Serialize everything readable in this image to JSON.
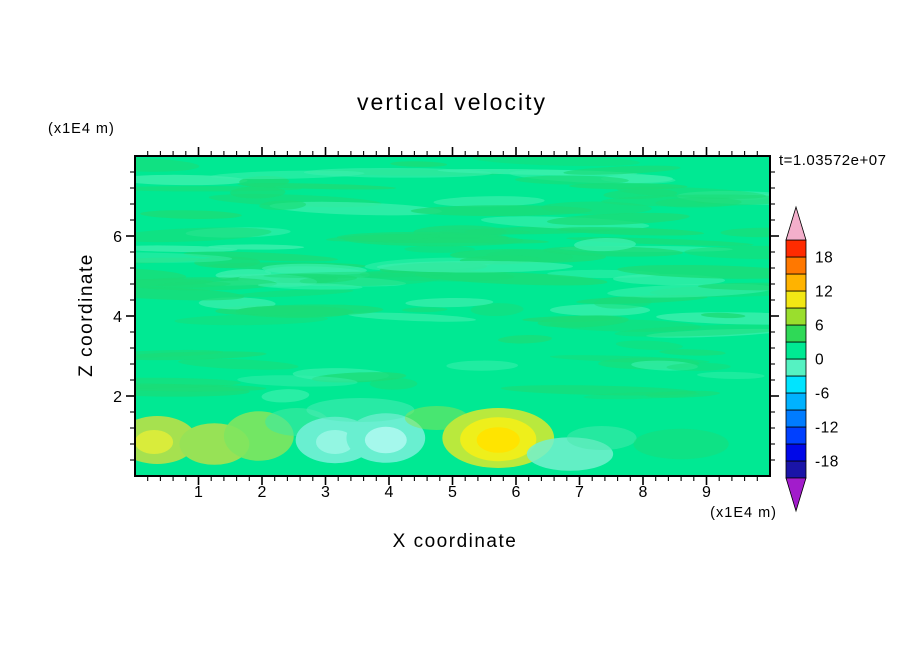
{
  "page": {
    "background": "#ffffff"
  },
  "chart_data": {
    "type": "heatmap",
    "title": "vertical velocity",
    "xlabel": "X coordinate",
    "ylabel": "Z coordinate",
    "x_unit_label": "(x1E4 m)",
    "y_unit_label": "(x1E4 m)",
    "timestamp": "t=1.03572e+07",
    "timestamp_color": "#9E3A26",
    "xlim": [
      0,
      10
    ],
    "ylim": [
      0,
      8
    ],
    "x_ticks": [
      1,
      2,
      3,
      4,
      5,
      6,
      7,
      8,
      9
    ],
    "y_ticks": [
      2,
      4,
      6
    ],
    "x_minor_step": 0.2,
    "y_minor_step": 0.4,
    "field": {
      "background_color": "#00E993",
      "streak_colors": [
        "#1BDC77",
        "#3BEFAD"
      ],
      "streak_count": 130,
      "streak_zone_z": [
        1.95,
        7.92
      ],
      "blobs": [
        {
          "x": 0.35,
          "z": 0.9,
          "rx": 0.62,
          "ry": 0.6,
          "color": "#A6E14F",
          "opacity": 1
        },
        {
          "x": 0.3,
          "z": 0.85,
          "rx": 0.3,
          "ry": 0.3,
          "color": "#D9EC3B",
          "opacity": 1
        },
        {
          "x": 1.25,
          "z": 0.8,
          "rx": 0.55,
          "ry": 0.52,
          "color": "#97E256",
          "opacity": 1
        },
        {
          "x": 1.95,
          "z": 1.0,
          "rx": 0.55,
          "ry": 0.62,
          "color": "#7FE55F",
          "opacity": 0.9
        },
        {
          "x": 2.55,
          "z": 1.35,
          "rx": 0.5,
          "ry": 0.35,
          "color": "#3FE9A0",
          "opacity": 0.6
        },
        {
          "x": 3.15,
          "z": 0.9,
          "rx": 0.62,
          "ry": 0.58,
          "color": "#69EFD0",
          "opacity": 1
        },
        {
          "x": 3.15,
          "z": 0.85,
          "rx": 0.3,
          "ry": 0.3,
          "color": "#93F6E2",
          "opacity": 1
        },
        {
          "x": 3.95,
          "z": 0.95,
          "rx": 0.62,
          "ry": 0.62,
          "color": "#69EFD0",
          "opacity": 1
        },
        {
          "x": 3.95,
          "z": 0.9,
          "rx": 0.33,
          "ry": 0.33,
          "color": "#A5F8EC",
          "opacity": 1
        },
        {
          "x": 3.55,
          "z": 1.65,
          "rx": 0.85,
          "ry": 0.3,
          "color": "#4FEBB8",
          "opacity": 0.5
        },
        {
          "x": 4.75,
          "z": 1.45,
          "rx": 0.5,
          "ry": 0.3,
          "color": "#8FE44F",
          "opacity": 0.5
        },
        {
          "x": 5.72,
          "z": 0.95,
          "rx": 0.88,
          "ry": 0.75,
          "color": "#B9E93D",
          "opacity": 1
        },
        {
          "x": 5.72,
          "z": 0.92,
          "rx": 0.6,
          "ry": 0.55,
          "color": "#EEEF1B",
          "opacity": 1
        },
        {
          "x": 5.72,
          "z": 0.9,
          "rx": 0.34,
          "ry": 0.32,
          "color": "#FFE400",
          "opacity": 1
        },
        {
          "x": 6.85,
          "z": 0.55,
          "rx": 0.68,
          "ry": 0.42,
          "color": "#73F0CE",
          "opacity": 0.85
        },
        {
          "x": 7.35,
          "z": 0.95,
          "rx": 0.55,
          "ry": 0.3,
          "color": "#49EAAE",
          "opacity": 0.5
        },
        {
          "x": 8.6,
          "z": 0.8,
          "rx": 0.75,
          "ry": 0.38,
          "color": "#1BDC77",
          "opacity": 0.5
        }
      ]
    },
    "colorbar": {
      "levels": [
        -21,
        -18,
        -15,
        -12,
        -9,
        -6,
        -3,
        0,
        3,
        6,
        9,
        12,
        15,
        18,
        21
      ],
      "colors": [
        "#1A14A8",
        "#0008E8",
        "#0040FF",
        "#007CFF",
        "#00B2FF",
        "#00E4FF",
        "#55F2C2",
        "#00E993",
        "#2FD957",
        "#9ADE2D",
        "#F2E714",
        "#FFB300",
        "#FF7800",
        "#FF2B00"
      ],
      "top_arrow_color": "#F3AFCB",
      "bottom_arrow_color": "#A21CCB",
      "tick_values": [
        18,
        12,
        6,
        0,
        -6,
        -12,
        -18
      ],
      "tick_labels": [
        "18",
        "12",
        "6",
        "0",
        "-6",
        "-12",
        "-18"
      ]
    }
  }
}
